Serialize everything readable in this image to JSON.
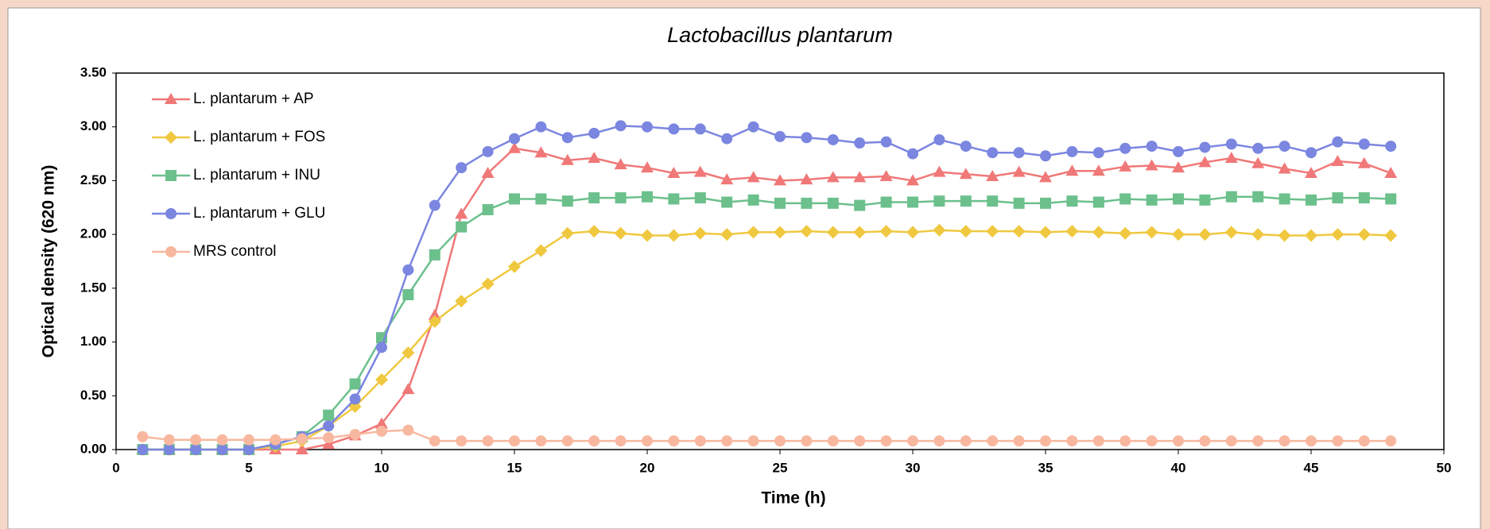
{
  "chart_data": {
    "type": "line",
    "title": "Lactobacillus plantarum",
    "x_label": "Time (h)",
    "y_label": "Optical density (620 nm)",
    "x": [
      1,
      2,
      3,
      4,
      5,
      6,
      7,
      8,
      9,
      10,
      11,
      12,
      13,
      14,
      15,
      16,
      17,
      18,
      19,
      20,
      21,
      22,
      23,
      24,
      25,
      26,
      27,
      28,
      29,
      30,
      31,
      32,
      33,
      34,
      35,
      36,
      37,
      38,
      39,
      40,
      41,
      42,
      43,
      44,
      45,
      46,
      47,
      48
    ],
    "series": [
      {
        "name": "L. plantarum + AP",
        "color": "#f07878",
        "marker": "triangle",
        "values": [
          0,
          0,
          0,
          0,
          0,
          0,
          0,
          0.05,
          0.13,
          0.24,
          0.56,
          1.25,
          2.19,
          2.57,
          2.8,
          2.76,
          2.69,
          2.71,
          2.65,
          2.62,
          2.57,
          2.58,
          2.51,
          2.53,
          2.5,
          2.51,
          2.53,
          2.53,
          2.54,
          2.5,
          2.58,
          2.56,
          2.54,
          2.58,
          2.53,
          2.59,
          2.59,
          2.63,
          2.64,
          2.62,
          2.67,
          2.71,
          2.66,
          2.61,
          2.57,
          2.68,
          2.66,
          2.57
        ]
      },
      {
        "name": "L. plantarum + FOS",
        "color": "#f0c840",
        "marker": "diamond",
        "values": [
          0,
          0,
          0,
          0,
          0,
          0.03,
          0.08,
          0.22,
          0.4,
          0.65,
          0.9,
          1.19,
          1.38,
          1.54,
          1.7,
          1.85,
          2.01,
          2.03,
          2.01,
          1.99,
          1.99,
          2.01,
          2.0,
          2.02,
          2.02,
          2.03,
          2.02,
          2.02,
          2.03,
          2.02,
          2.04,
          2.03,
          2.03,
          2.03,
          2.02,
          2.03,
          2.02,
          2.01,
          2.02,
          2.0,
          2.0,
          2.02,
          2.0,
          1.99,
          1.99,
          2.0,
          2.0,
          1.99
        ]
      },
      {
        "name": "L. plantarum + INU",
        "color": "#6cc08c",
        "marker": "square",
        "values": [
          0,
          0,
          0,
          0,
          0,
          0.05,
          0.12,
          0.32,
          0.61,
          1.04,
          1.44,
          1.81,
          2.07,
          2.23,
          2.33,
          2.33,
          2.31,
          2.34,
          2.34,
          2.35,
          2.33,
          2.34,
          2.3,
          2.32,
          2.29,
          2.29,
          2.29,
          2.27,
          2.3,
          2.3,
          2.31,
          2.31,
          2.31,
          2.29,
          2.29,
          2.31,
          2.3,
          2.33,
          2.32,
          2.33,
          2.32,
          2.35,
          2.35,
          2.33,
          2.32,
          2.34,
          2.34,
          2.33
        ]
      },
      {
        "name": "L. plantarum + GLU",
        "color": "#7b86e0",
        "marker": "circle",
        "values": [
          0,
          0,
          0,
          0,
          0,
          0.05,
          0.12,
          0.22,
          0.47,
          0.95,
          1.67,
          2.27,
          2.62,
          2.77,
          2.89,
          3.0,
          2.9,
          2.94,
          3.01,
          3.0,
          2.98,
          2.98,
          2.89,
          3.0,
          2.91,
          2.9,
          2.88,
          2.85,
          2.86,
          2.75,
          2.88,
          2.82,
          2.76,
          2.76,
          2.73,
          2.77,
          2.76,
          2.8,
          2.82,
          2.77,
          2.81,
          2.84,
          2.8,
          2.82,
          2.76,
          2.86,
          2.84,
          2.82
        ]
      },
      {
        "name": "MRS control",
        "color": "#f8b8a0",
        "marker": "circle",
        "values": [
          0.12,
          0.09,
          0.09,
          0.09,
          0.09,
          0.09,
          0.1,
          0.11,
          0.14,
          0.17,
          0.18,
          0.08,
          0.08,
          0.08,
          0.08,
          0.08,
          0.08,
          0.08,
          0.08,
          0.08,
          0.08,
          0.08,
          0.08,
          0.08,
          0.08,
          0.08,
          0.08,
          0.08,
          0.08,
          0.08,
          0.08,
          0.08,
          0.08,
          0.08,
          0.08,
          0.08,
          0.08,
          0.08,
          0.08,
          0.08,
          0.08,
          0.08,
          0.08,
          0.08,
          0.08,
          0.08,
          0.08,
          0.08
        ]
      }
    ],
    "xlim": [
      0,
      50
    ],
    "xticks": [
      0,
      5,
      10,
      15,
      20,
      25,
      30,
      35,
      40,
      45,
      50
    ],
    "ylim": [
      0,
      3.5
    ],
    "yticks": [
      {
        "value": 0,
        "label": "0.00"
      },
      {
        "value": 0.5,
        "label": "0.50"
      },
      {
        "value": 1,
        "label": "1.00"
      },
      {
        "value": 1.5,
        "label": "1.50"
      },
      {
        "value": 2,
        "label": "2.00"
      },
      {
        "value": 2.5,
        "label": "2.50"
      },
      {
        "value": 3,
        "label": "3.00"
      },
      {
        "value": 3.5,
        "label": "3.50"
      }
    ],
    "grid": false,
    "legend": "upper left"
  }
}
